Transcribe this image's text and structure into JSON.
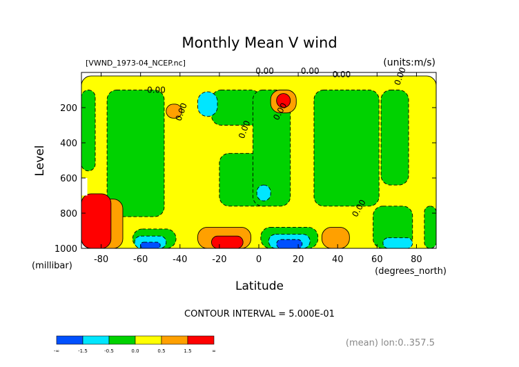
{
  "chart_data": {
    "type": "heatmap",
    "subtype": "filled-contour",
    "title": "Monthly Mean V wind",
    "file_label": "[VWND_1973-04_NCEP.nc]",
    "units_label": "(units:m/s)",
    "xlabel": "Latitude",
    "x_unit_label": "(degrees_north)",
    "ylabel": "Level",
    "y_unit_label": "(millibar)",
    "xlim": [
      -90,
      90
    ],
    "ylim": [
      1000,
      0
    ],
    "x_ticks": [
      "-80",
      "-60",
      "-40",
      "-20",
      "0",
      "20",
      "40",
      "60",
      "80"
    ],
    "x_tick_values": [
      -80,
      -60,
      -40,
      -20,
      0,
      20,
      40,
      60,
      80
    ],
    "y_ticks": [
      "200",
      "400",
      "600",
      "800",
      "1000"
    ],
    "y_tick_values": [
      200,
      400,
      600,
      800,
      1000
    ],
    "contour_interval_text": "CONTOUR INTERVAL = 5.000E-01",
    "mean_text": "(mean) lon:0..357.5",
    "zero_contour_label": "0.00",
    "colorbar": {
      "colors": [
        "#0050ff",
        "#00e6ff",
        "#00d200",
        "#ffff00",
        "#ffa000",
        "#ff0000"
      ],
      "labels": [
        "-∞",
        "-1.5",
        "-0.5",
        "0.0",
        "0.5",
        "1.5",
        "∞"
      ]
    },
    "regions": [
      {
        "lat": [
          -90,
          90
        ],
        "lev": [
          20,
          1000
        ],
        "value": 0.25
      },
      {
        "lat": [
          -90,
          -83
        ],
        "lev": [
          100,
          560
        ],
        "value": -0.25
      },
      {
        "lat": [
          -77,
          -48
        ],
        "lev": [
          100,
          820
        ],
        "value": -0.25
      },
      {
        "lat": [
          -24,
          1
        ],
        "lev": [
          100,
          300
        ],
        "value": -0.25
      },
      {
        "lat": [
          -20,
          8
        ],
        "lev": [
          460,
          760
        ],
        "value": -0.25
      },
      {
        "lat": [
          -3,
          16
        ],
        "lev": [
          100,
          760
        ],
        "value": -0.25
      },
      {
        "lat": [
          28,
          61
        ],
        "lev": [
          100,
          760
        ],
        "value": -0.25
      },
      {
        "lat": [
          62,
          76
        ],
        "lev": [
          100,
          640
        ],
        "value": -0.25
      },
      {
        "lat": [
          58,
          78
        ],
        "lev": [
          760,
          1000
        ],
        "value": -0.25
      },
      {
        "lat": [
          84,
          90
        ],
        "lev": [
          760,
          1000
        ],
        "value": -0.25
      },
      {
        "lat": [
          -64,
          -42
        ],
        "lev": [
          890,
          1000
        ],
        "value": -0.25
      },
      {
        "lat": [
          1,
          30
        ],
        "lev": [
          880,
          1000
        ],
        "value": -0.25
      },
      {
        "lat": [
          -31,
          -21
        ],
        "lev": [
          110,
          250
        ],
        "value": -0.75
      },
      {
        "lat": [
          -63,
          -47
        ],
        "lev": [
          930,
          1000
        ],
        "value": -0.75
      },
      {
        "lat": [
          5,
          26
        ],
        "lev": [
          920,
          1000
        ],
        "value": -0.75
      },
      {
        "lat": [
          63,
          78
        ],
        "lev": [
          940,
          1000
        ],
        "value": -0.75
      },
      {
        "lat": [
          -1,
          6
        ],
        "lev": [
          640,
          730
        ],
        "value": -0.75
      },
      {
        "lat": [
          -60,
          -50
        ],
        "lev": [
          965,
          1000
        ],
        "value": -1.75
      },
      {
        "lat": [
          9,
          22
        ],
        "lev": [
          950,
          1000
        ],
        "value": -1.75
      },
      {
        "lat": [
          -47,
          -39
        ],
        "lev": [
          180,
          260
        ],
        "value": 0.75
      },
      {
        "lat": [
          6,
          19
        ],
        "lev": [
          100,
          230
        ],
        "value": 0.75
      },
      {
        "lat": [
          -83,
          -69
        ],
        "lev": [
          720,
          1000
        ],
        "value": 0.75
      },
      {
        "lat": [
          -31,
          -4
        ],
        "lev": [
          880,
          1000
        ],
        "value": 0.75
      },
      {
        "lat": [
          32,
          46
        ],
        "lev": [
          880,
          1000
        ],
        "value": 0.75
      },
      {
        "lat": [
          -90,
          -75
        ],
        "lev": [
          690,
          1000
        ],
        "value": 1.75
      },
      {
        "lat": [
          -24,
          -8
        ],
        "lev": [
          930,
          1000
        ],
        "value": 1.75
      },
      {
        "lat": [
          9,
          16
        ],
        "lev": [
          120,
          200
        ],
        "value": 1.75
      }
    ]
  }
}
